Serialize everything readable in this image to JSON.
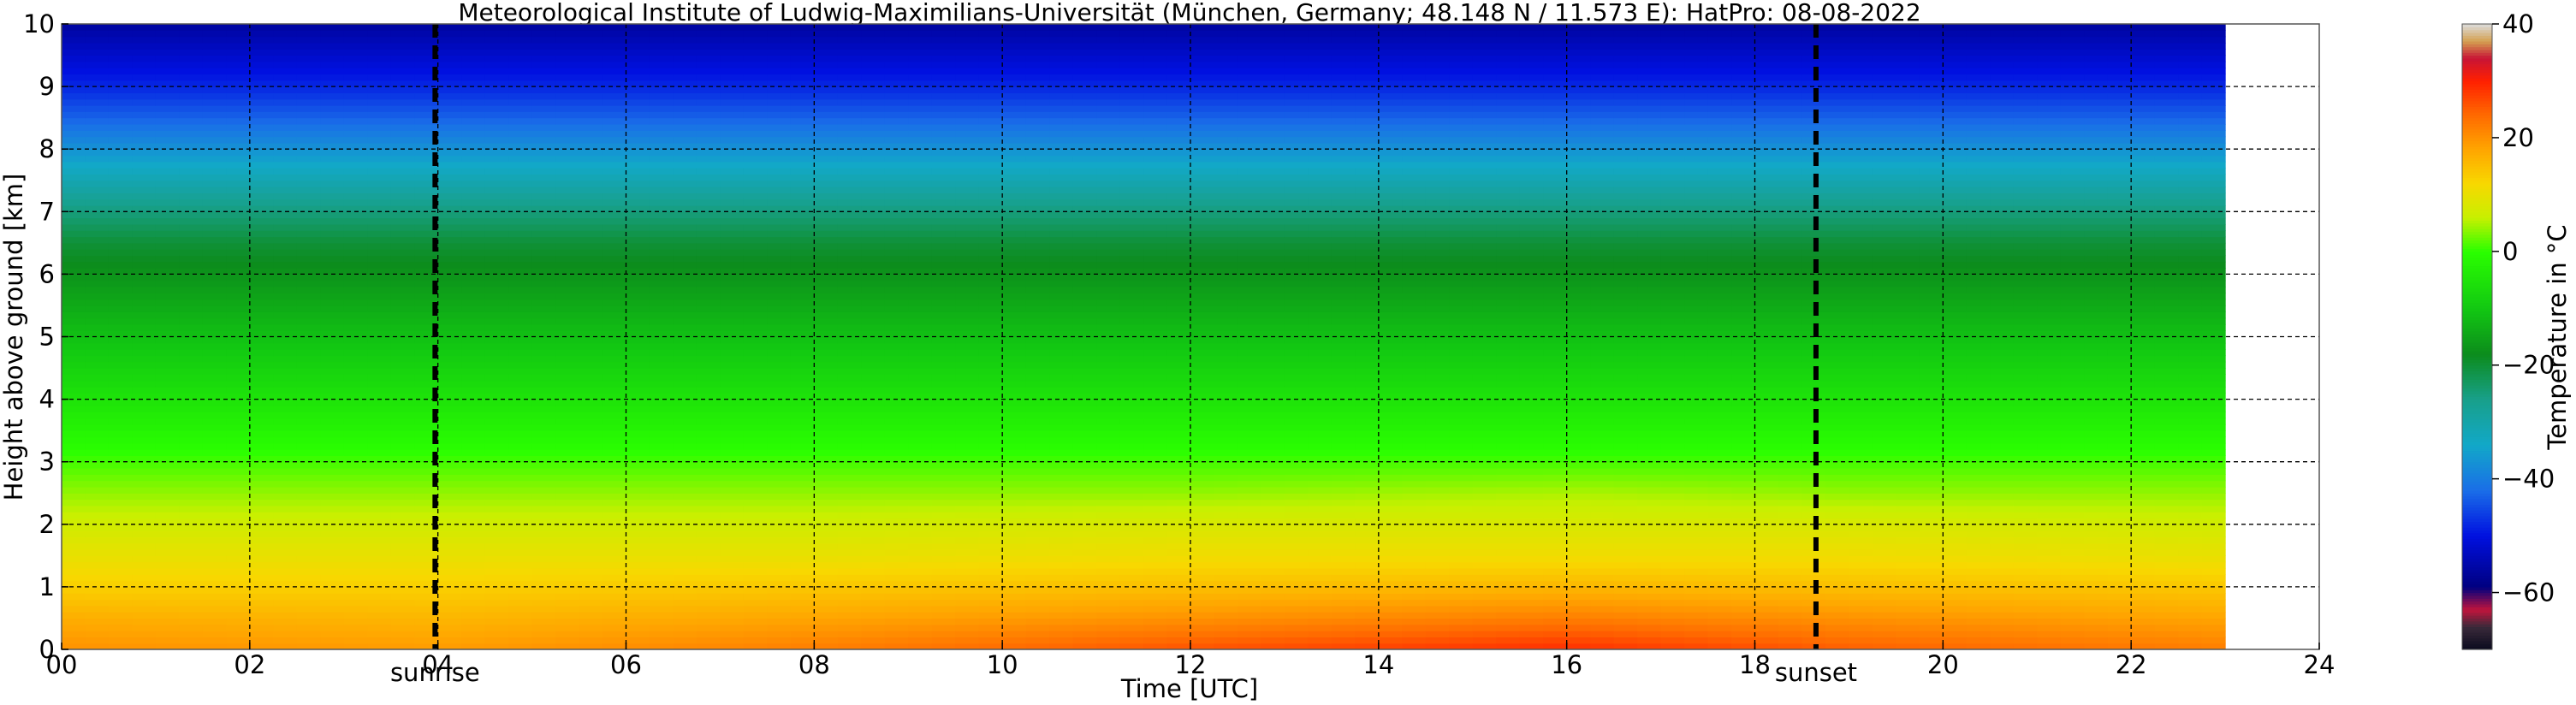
{
  "chart_data": {
    "type": "heatmap",
    "title": "Meteorological Institute of Ludwig-Maximilians-Universität (München, Germany; 48.148 N / 11.573 E):    HatPro: 08-08-2022",
    "xlabel": "Time [UTC]",
    "ylabel": "Height above ground [km]",
    "colorbar_label": "Temperature in °C",
    "xlim": [
      0,
      24
    ],
    "ylim": [
      0,
      10
    ],
    "x_ticks": [
      "00",
      "02",
      "04",
      "06",
      "08",
      "10",
      "12",
      "14",
      "16",
      "18",
      "20",
      "22",
      "24"
    ],
    "x_tick_values": [
      0,
      2,
      4,
      6,
      8,
      10,
      12,
      14,
      16,
      18,
      20,
      22,
      24
    ],
    "y_ticks": [
      "0",
      "1",
      "2",
      "3",
      "4",
      "5",
      "6",
      "7",
      "8",
      "9",
      "10"
    ],
    "y_tick_values": [
      0,
      1,
      2,
      3,
      4,
      5,
      6,
      7,
      8,
      9,
      10
    ],
    "colorbar_ticks": [
      "40",
      "20",
      "0",
      "−20",
      "−40",
      "−60"
    ],
    "colorbar_tick_values": [
      40,
      20,
      0,
      -20,
      -40,
      -60
    ],
    "colorbar_range": [
      -70,
      40
    ],
    "data_end_hour": 23,
    "grid": true,
    "vertical_markers": [
      {
        "label": "sunrise",
        "x": 3.97
      },
      {
        "label": "sunset",
        "x": 18.65
      }
    ],
    "heights_km": [
      0.0,
      0.5,
      1.0,
      1.5,
      2.0,
      2.5,
      3.0,
      3.5,
      4.0,
      4.5,
      5.0,
      5.5,
      6.0,
      6.5,
      7.0,
      7.5,
      8.0,
      8.5,
      9.0,
      9.5,
      10.0
    ],
    "temperature_profile_c": [
      {
        "time": 0,
        "values": [
          20,
          17,
          13,
          10,
          7,
          4,
          1,
          -2,
          -5,
          -8,
          -11,
          -14,
          -17,
          -20,
          -25,
          -31,
          -37,
          -43,
          -48,
          -52,
          -56
        ]
      },
      {
        "time": 4,
        "values": [
          19,
          16,
          13,
          10,
          7,
          4,
          1,
          -2,
          -5,
          -8,
          -11,
          -14,
          -17,
          -20,
          -25,
          -31,
          -37,
          -43,
          -48,
          -52,
          -56
        ]
      },
      {
        "time": 8,
        "values": [
          22,
          18,
          14,
          10,
          7,
          4,
          1,
          -2,
          -5,
          -8,
          -11,
          -14,
          -17,
          -20,
          -25,
          -31,
          -37,
          -43,
          -48,
          -52,
          -56
        ]
      },
      {
        "time": 12,
        "values": [
          26,
          20,
          15,
          11,
          8,
          4,
          1,
          -2,
          -5,
          -8,
          -11,
          -14,
          -17,
          -20,
          -25,
          -31,
          -37,
          -43,
          -48,
          -52,
          -56
        ]
      },
      {
        "time": 16,
        "values": [
          29,
          22,
          16,
          11,
          8,
          5,
          1,
          -2,
          -5,
          -8,
          -11,
          -14,
          -17,
          -20,
          -25,
          -31,
          -37,
          -43,
          -48,
          -52,
          -56
        ]
      },
      {
        "time": 19,
        "values": [
          25,
          20,
          15,
          11,
          8,
          4,
          1,
          -2,
          -5,
          -8,
          -11,
          -14,
          -17,
          -20,
          -25,
          -31,
          -37,
          -43,
          -48,
          -52,
          -56
        ]
      },
      {
        "time": 23,
        "values": [
          22,
          18,
          14,
          10,
          7,
          4,
          1,
          -2,
          -5,
          -8,
          -11,
          -14,
          -17,
          -20,
          -25,
          -31,
          -37,
          -43,
          -48,
          -52,
          -56
        ]
      }
    ],
    "colormap": [
      {
        "value": -70,
        "color": "#0a0a1e"
      },
      {
        "value": -66,
        "color": "#3a2a3a"
      },
      {
        "value": -63,
        "color": "#c0143c"
      },
      {
        "value": -59,
        "color": "#000080"
      },
      {
        "value": -50,
        "color": "#0010e0"
      },
      {
        "value": -42,
        "color": "#1a6ee8"
      },
      {
        "value": -34,
        "color": "#12a8c8"
      },
      {
        "value": -26,
        "color": "#18a08a"
      },
      {
        "value": -18,
        "color": "#0c8c1c"
      },
      {
        "value": -10,
        "color": "#12c812"
      },
      {
        "value": 0,
        "color": "#2aff00"
      },
      {
        "value": 6,
        "color": "#c8f000"
      },
      {
        "value": 12,
        "color": "#f8d800"
      },
      {
        "value": 18,
        "color": "#ffa500"
      },
      {
        "value": 24,
        "color": "#ff6a00"
      },
      {
        "value": 30,
        "color": "#ff2000"
      },
      {
        "value": 34,
        "color": "#c81436"
      },
      {
        "value": 37,
        "color": "#d4a050"
      },
      {
        "value": 40,
        "color": "#dcdcdc"
      }
    ]
  }
}
